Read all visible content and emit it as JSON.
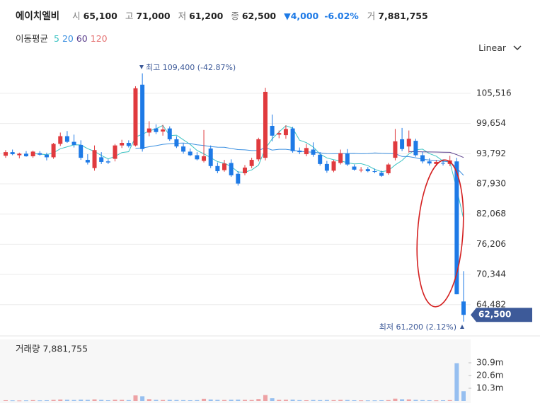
{
  "chart_data": {
    "type": "candlestick",
    "header": {
      "name": "에이치엘비",
      "quote": [
        {
          "label": "시",
          "value": "65,100"
        },
        {
          "label": "고",
          "value": "71,000"
        },
        {
          "label": "저",
          "value": "61,200"
        },
        {
          "label": "종",
          "value": "62,500"
        }
      ],
      "change": "▼4,000",
      "change_pct": "-6.02%",
      "volume_label": "거",
      "volume": "7,881,755"
    },
    "ma_label": "이동평균",
    "moving_averages": [
      {
        "period": 5,
        "color": "#3cc3c3"
      },
      {
        "period": 20,
        "color": "#3a8fe0"
      },
      {
        "period": 60,
        "color": "#5b3f8c"
      },
      {
        "period": 120,
        "color": "#e57373"
      }
    ],
    "scale_mode": "Linear",
    "up_color": "#e03a3e",
    "down_color": "#1e7ae6",
    "open": [
      93400,
      94100,
      93500,
      93800,
      93300,
      93900,
      93600,
      93100,
      95700,
      97200,
      96100,
      95500,
      92600,
      91000,
      93100,
      92300,
      92800,
      95400,
      95900,
      95400,
      107200,
      97900,
      98700,
      98100,
      98700,
      96600,
      95200,
      94200,
      93500,
      92400,
      94800,
      91400,
      90600,
      92000,
      89900,
      90000,
      91400,
      92700,
      93000,
      99200,
      97500,
      97400,
      98700,
      94400,
      93700,
      94600,
      93600,
      91800,
      90500,
      92000,
      93800,
      91300,
      90600,
      90800,
      90400,
      90100,
      90000,
      93000,
      96600,
      95200,
      96300,
      93500,
      92300,
      91800,
      92000,
      91800,
      92300,
      65100
    ],
    "high": [
      94500,
      94600,
      94000,
      94300,
      94400,
      94300,
      94000,
      95900,
      97900,
      98200,
      97500,
      96400,
      93700,
      95400,
      94100,
      92700,
      95700,
      96500,
      96400,
      106900,
      109400,
      100100,
      99500,
      99400,
      99100,
      97200,
      95800,
      94800,
      94100,
      98400,
      95400,
      92100,
      92600,
      92700,
      90400,
      91600,
      93000,
      96900,
      106600,
      101400,
      98300,
      99300,
      99000,
      95000,
      95700,
      96000,
      94100,
      92400,
      92600,
      94600,
      94700,
      91700,
      91200,
      91200,
      90900,
      90500,
      92000,
      98600,
      98800,
      98300,
      96700,
      94200,
      92900,
      92600,
      92700,
      93400,
      93000,
      71000
    ],
    "low": [
      93000,
      93500,
      92900,
      93200,
      93000,
      93400,
      92500,
      92800,
      95300,
      95900,
      95000,
      92600,
      91700,
      90500,
      91800,
      91800,
      92300,
      94900,
      95000,
      95200,
      94200,
      97200,
      97600,
      97300,
      96300,
      94900,
      93800,
      93300,
      92500,
      92100,
      91000,
      90000,
      90300,
      89300,
      87600,
      89600,
      91000,
      92300,
      92500,
      96200,
      96800,
      96700,
      94000,
      93700,
      93300,
      93200,
      91500,
      90100,
      90200,
      91700,
      91400,
      90500,
      90200,
      90200,
      90000,
      89300,
      89700,
      92500,
      94300,
      94000,
      93200,
      91900,
      91500,
      91400,
      91500,
      91400,
      66500,
      61200
    ],
    "close": [
      94100,
      93700,
      93800,
      93300,
      94200,
      93600,
      93100,
      95700,
      97200,
      96100,
      95500,
      93000,
      92100,
      94500,
      92200,
      92100,
      95400,
      95900,
      95300,
      106500,
      94700,
      98700,
      98000,
      98500,
      96600,
      95200,
      94200,
      93500,
      92700,
      93300,
      91400,
      90400,
      91900,
      89600,
      88000,
      91100,
      92600,
      96600,
      105800,
      97300,
      97800,
      98600,
      94300,
      94100,
      94900,
      93600,
      91800,
      90500,
      92300,
      93900,
      91700,
      90700,
      90700,
      90400,
      90300,
      89500,
      91700,
      96200,
      94700,
      96700,
      93500,
      92300,
      91900,
      92200,
      91900,
      92500,
      66500,
      62500
    ],
    "volume": [
      600000,
      500000,
      400000,
      500000,
      700000,
      500000,
      600000,
      900000,
      1200000,
      1000000,
      800000,
      1100000,
      900000,
      1300000,
      900000,
      600000,
      1000000,
      900000,
      700000,
      4500000,
      3800000,
      1500000,
      900000,
      800000,
      900000,
      800000,
      700000,
      600000,
      700000,
      1800000,
      1200000,
      900000,
      800000,
      1000000,
      1100000,
      900000,
      800000,
      1600000,
      4800000,
      2200000,
      900000,
      1000000,
      1100000,
      700000,
      600000,
      800000,
      700000,
      800000,
      700000,
      900000,
      800000,
      600000,
      500000,
      500000,
      500000,
      600000,
      700000,
      1900000,
      1400000,
      1300000,
      900000,
      700000,
      600000,
      500000,
      600000,
      700000,
      30600000,
      7881755
    ],
    "ylim": [
      59100,
      111970
    ],
    "yticks": [
      {
        "value": 105516,
        "label": "105,516"
      },
      {
        "value": 99654,
        "label": "99,654"
      },
      {
        "value": 93792,
        "label": "93,792"
      },
      {
        "value": 87930,
        "label": "87,930"
      },
      {
        "value": 82068,
        "label": "82,068"
      },
      {
        "value": 76206,
        "label": "76,206"
      },
      {
        "value": 70344,
        "label": "70,344"
      },
      {
        "value": 64482,
        "label": "64,482"
      }
    ],
    "grid": true,
    "high_note": "최고 109,400 (-42.87%)",
    "low_note": "최저 61,200 (2.12%)",
    "last_price_label": "62,500",
    "volume_title": "거래량 7,881,755",
    "vlim": [
      0,
      49800000
    ],
    "volume_ticks": [
      {
        "value": 30900000,
        "label": "30.9m"
      },
      {
        "value": 20600000,
        "label": "20.6m"
      },
      {
        "value": 10300000,
        "label": "10.3m"
      }
    ]
  }
}
